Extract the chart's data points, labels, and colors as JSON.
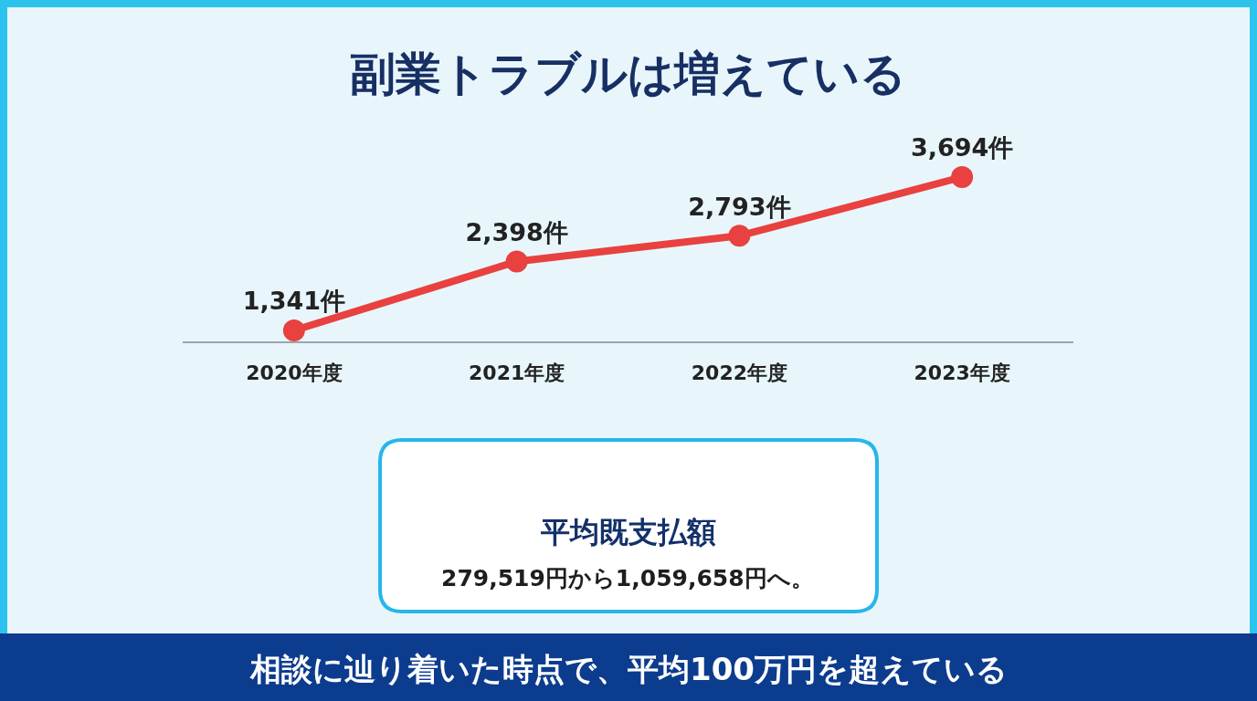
{
  "chart_data": {
    "type": "line",
    "title": "副業トラブルは増えている",
    "categories": [
      "2020年度",
      "2021年度",
      "2022年度",
      "2023年度"
    ],
    "values": [
      1341,
      2398,
      2793,
      3694
    ],
    "value_labels": [
      "1,341件",
      "2,398件",
      "2,793件",
      "3,694件"
    ],
    "color": "#e8413f",
    "tick_labels": "x",
    "grid": false,
    "marker": "circle",
    "line_style": "solid",
    "annotations": [
      "平均既支払額",
      "279,519円から1,059,658円へ。",
      "相談に辿り着いた時点で、平均100万円を超えている"
    ]
  }
}
